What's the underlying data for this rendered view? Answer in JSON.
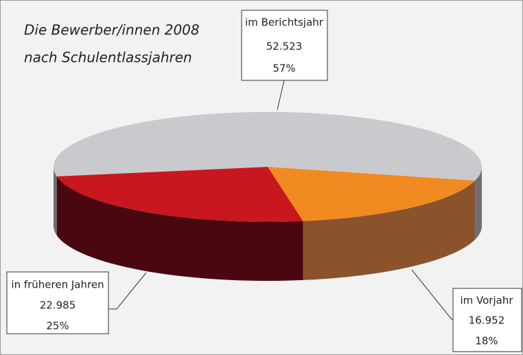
{
  "chart_data": {
    "type": "pie",
    "title": "Die Bewerber/innen 2008",
    "subtitle": "nach  Schulentlassjahren",
    "categories": [
      "im Berichtsjahr",
      "im Vorjahr",
      "in früheren Jahren"
    ],
    "values": [
      52523,
      16952,
      22985
    ],
    "value_labels": [
      "52.523",
      "16.952",
      "22.985"
    ],
    "percentages": [
      57,
      18,
      25
    ],
    "percentage_labels": [
      "57%",
      "18%",
      "25%"
    ],
    "colors": [
      "#c9cacd",
      "#f28a22",
      "#c8171f"
    ],
    "side_colors": [
      "#6e6e70",
      "#8a532c",
      "#4a0710"
    ]
  }
}
